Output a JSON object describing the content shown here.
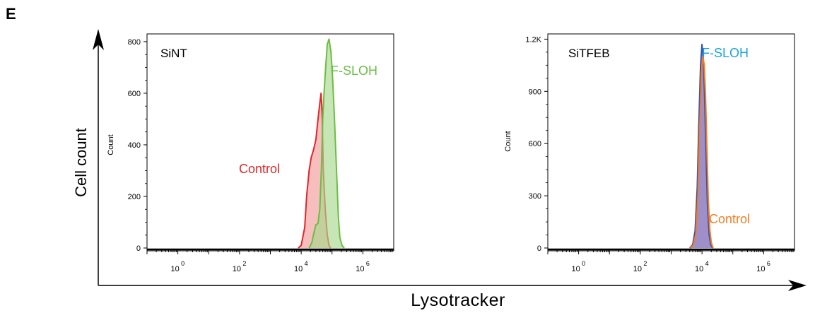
{
  "figure": {
    "panel_letter": "E",
    "shared_ylabel": "Cell count",
    "shared_xlabel": "Lysotracker"
  },
  "colors": {
    "control_left": "#e0262a",
    "control_left_fill": "#f4a8a8",
    "fslo_left": "#6cbd45",
    "fslo_left_fill": "#a9d88e",
    "control_right": "#f47c20",
    "fslo_right": "#3d55a6",
    "fslo_right_fill": "#8e7bbf",
    "fslo_label_right": "#1aa3dc",
    "axis": "#000000"
  },
  "chart_data": [
    {
      "type": "area",
      "panel_label": "SiNT",
      "ylabel": "Count",
      "x_scale": "log",
      "xlim": [
        0.1,
        10000000.0
      ],
      "x_ticks": [
        {
          "exp": "0",
          "value": 1
        },
        {
          "exp": "2",
          "value": 100
        },
        {
          "exp": "4",
          "value": 10000
        },
        {
          "exp": "6",
          "value": 1000000
        }
      ],
      "ylim": [
        0,
        830
      ],
      "y_ticks": [
        "0",
        "200",
        "400",
        "600",
        "800"
      ],
      "y_tick_values": [
        0,
        200,
        400,
        600,
        800
      ],
      "series": [
        {
          "name": "Control",
          "x": [
            8000,
            10000,
            13000,
            15000,
            18000,
            21000,
            25000,
            30000,
            35000,
            40000,
            44000,
            48000,
            52000,
            60000,
            70000,
            80000,
            90000
          ],
          "y": [
            0,
            10,
            80,
            200,
            300,
            350,
            380,
            420,
            500,
            560,
            600,
            520,
            300,
            150,
            50,
            10,
            0
          ]
        },
        {
          "name": "F-SLOH",
          "x": [
            18000,
            22000,
            26000,
            30000,
            35000,
            40000,
            45000,
            50000,
            55000,
            62000,
            70000,
            80000,
            92000,
            105000,
            120000,
            140000,
            160000,
            180000,
            210000,
            250000
          ],
          "y": [
            0,
            20,
            60,
            90,
            95,
            150,
            300,
            500,
            600,
            700,
            790,
            810,
            760,
            650,
            500,
            300,
            120,
            40,
            10,
            0
          ]
        }
      ]
    },
    {
      "type": "area",
      "panel_label": "SiTFEB",
      "ylabel": "Count",
      "x_scale": "log",
      "xlim": [
        0.1,
        10000000.0
      ],
      "x_ticks": [
        {
          "exp": "0",
          "value": 1
        },
        {
          "exp": "2",
          "value": 100
        },
        {
          "exp": "4",
          "value": 10000
        },
        {
          "exp": "6",
          "value": 1000000
        }
      ],
      "ylim": [
        0,
        1230
      ],
      "y_ticks": [
        "0",
        "300",
        "600",
        "900",
        "1.2K"
      ],
      "y_tick_values": [
        0,
        300,
        600,
        900,
        1200
      ],
      "series": [
        {
          "name": "F-SLOH",
          "x": [
            4000,
            5000,
            6000,
            7000,
            8000,
            9000,
            10000,
            11000,
            12000,
            13500,
            15000,
            17000,
            19000,
            22000
          ],
          "y": [
            0,
            20,
            100,
            350,
            750,
            1050,
            1170,
            1100,
            900,
            550,
            250,
            80,
            20,
            0
          ]
        },
        {
          "name": "Control",
          "x": [
            4200,
            5200,
            6300,
            7400,
            8500,
            9600,
            10700,
            11800,
            13000,
            14500,
            16000,
            18000,
            20000,
            23000
          ],
          "y": [
            0,
            15,
            80,
            300,
            700,
            1000,
            1100,
            1050,
            880,
            560,
            280,
            100,
            30,
            0
          ]
        }
      ]
    }
  ]
}
